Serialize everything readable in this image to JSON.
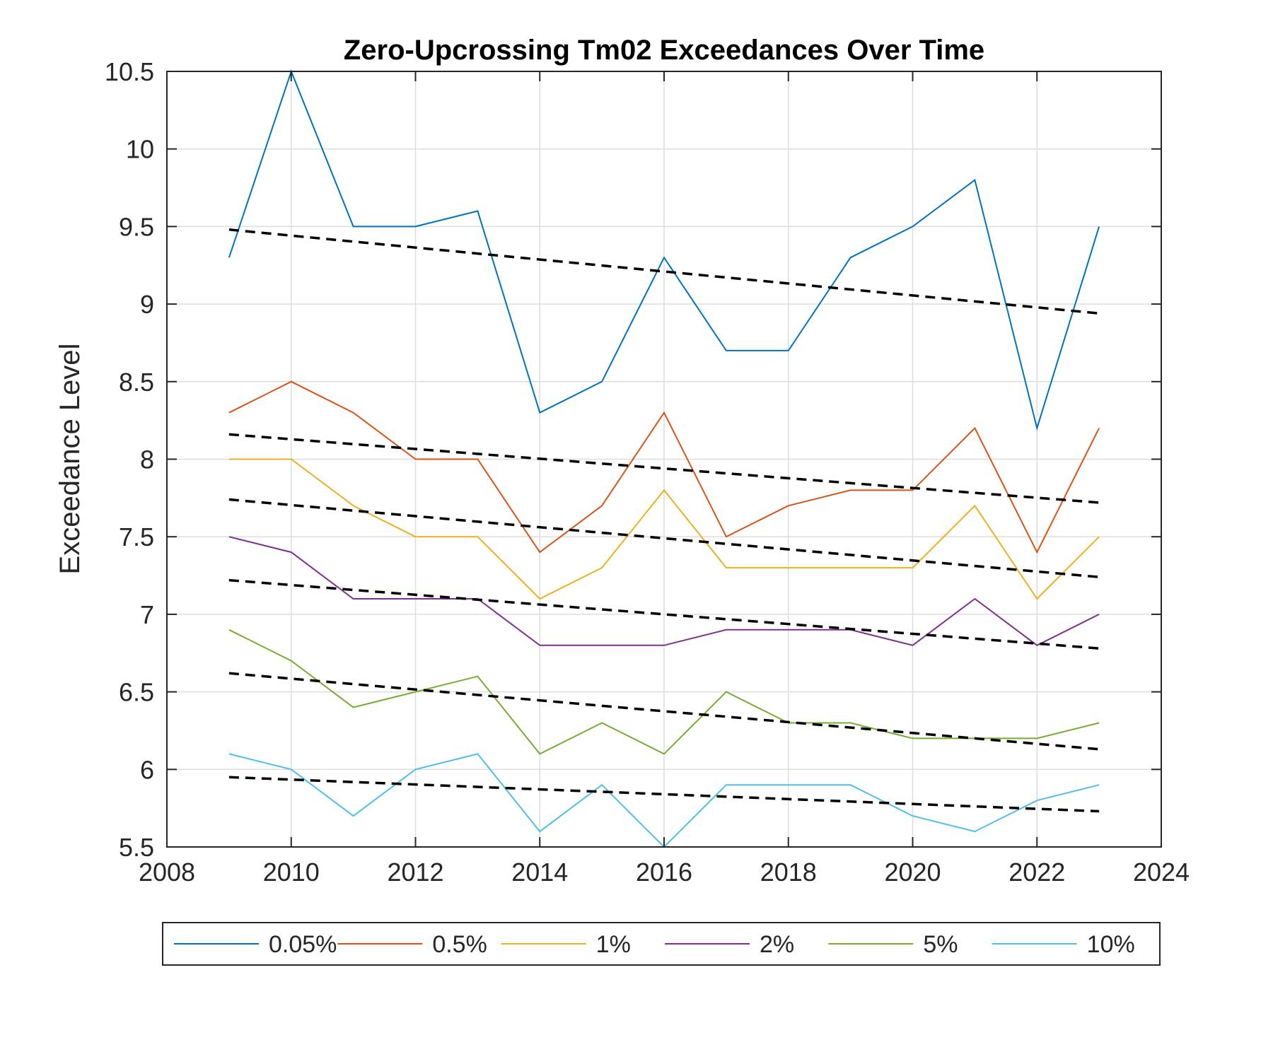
{
  "chart_data": {
    "type": "line",
    "title": "Zero-Upcrossing Tm02 Exceedances Over Time",
    "xlabel": "",
    "ylabel": "Exceedance Level",
    "xlim": [
      2008,
      2024
    ],
    "ylim": [
      5.5,
      10.5
    ],
    "xticks": [
      "2008",
      "2010",
      "2012",
      "2014",
      "2016",
      "2018",
      "2020",
      "2022",
      "2024"
    ],
    "yticks": [
      "5.5",
      "6",
      "6.5",
      "7",
      "7.5",
      "8",
      "8.5",
      "9",
      "9.5",
      "10",
      "10.5"
    ],
    "grid": true,
    "legend_position": "bottom-outside",
    "x": [
      2009,
      2010,
      2011,
      2012,
      2013,
      2014,
      2015,
      2016,
      2017,
      2018,
      2019,
      2020,
      2021,
      2022,
      2023
    ],
    "series": [
      {
        "name": "0.05%",
        "color": "#0072BD",
        "values": [
          9.3,
          10.5,
          9.5,
          9.5,
          9.6,
          8.3,
          8.5,
          9.3,
          8.7,
          8.7,
          9.3,
          9.5,
          9.8,
          8.2,
          9.5
        ],
        "trend": [
          9.48,
          8.94
        ]
      },
      {
        "name": "0.5%",
        "color": "#D95319",
        "values": [
          8.3,
          8.5,
          8.3,
          8.0,
          8.0,
          7.4,
          7.7,
          8.3,
          7.5,
          7.7,
          7.8,
          7.8,
          8.2,
          7.4,
          8.2
        ],
        "trend": [
          8.16,
          7.72
        ]
      },
      {
        "name": "1%",
        "color": "#EDB120",
        "values": [
          8.0,
          8.0,
          7.7,
          7.5,
          7.5,
          7.1,
          7.3,
          7.8,
          7.3,
          7.3,
          7.3,
          7.3,
          7.7,
          7.1,
          7.5
        ],
        "trend": [
          7.74,
          7.24
        ]
      },
      {
        "name": "2%",
        "color": "#7E2F8E",
        "values": [
          7.5,
          7.4,
          7.1,
          7.1,
          7.1,
          6.8,
          6.8,
          6.8,
          6.9,
          6.9,
          6.9,
          6.8,
          7.1,
          6.8,
          7.0
        ],
        "trend": [
          7.22,
          6.78
        ]
      },
      {
        "name": "5%",
        "color": "#77AC30",
        "values": [
          6.9,
          6.7,
          6.4,
          6.5,
          6.6,
          6.1,
          6.3,
          6.1,
          6.5,
          6.3,
          6.3,
          6.2,
          6.2,
          6.2,
          6.3
        ],
        "trend": [
          6.62,
          6.13
        ]
      },
      {
        "name": "10%",
        "color": "#4DBEEE",
        "values": [
          6.1,
          6.0,
          5.7,
          6.0,
          6.1,
          5.6,
          5.9,
          5.5,
          5.9,
          5.9,
          5.9,
          5.7,
          5.6,
          5.8,
          5.9
        ],
        "trend": [
          5.95,
          5.73
        ]
      }
    ]
  }
}
